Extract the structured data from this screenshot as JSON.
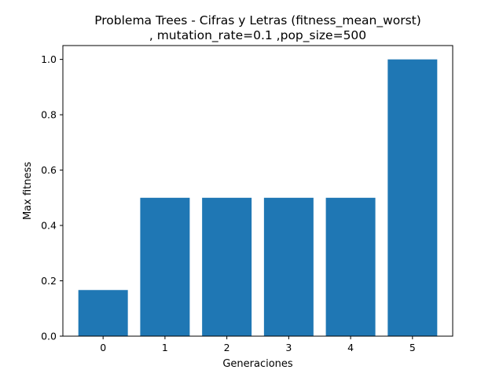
{
  "chart_data": {
    "type": "bar",
    "title_line1": "Problema Trees - Cifras y Letras (fitness_mean_worst)",
    "title_line2": ", mutation_rate=0.1 ,pop_size=500",
    "xlabel": "Generaciones",
    "ylabel": "Max fitness",
    "categories": [
      "0",
      "1",
      "2",
      "3",
      "4",
      "5"
    ],
    "x": [
      0,
      1,
      2,
      3,
      4,
      5
    ],
    "values": [
      0.1667,
      0.5,
      0.5,
      0.5,
      0.5,
      1.0
    ],
    "ylim": [
      0,
      1.05
    ],
    "xlim": [
      -0.65,
      5.65
    ],
    "yticks": [
      0.0,
      0.2,
      0.4,
      0.6,
      0.8,
      1.0
    ],
    "ytick_labels": [
      "0.0",
      "0.2",
      "0.4",
      "0.6",
      "0.8",
      "1.0"
    ],
    "bar_color": "#1f77b4",
    "grid": false,
    "legend": "none"
  }
}
